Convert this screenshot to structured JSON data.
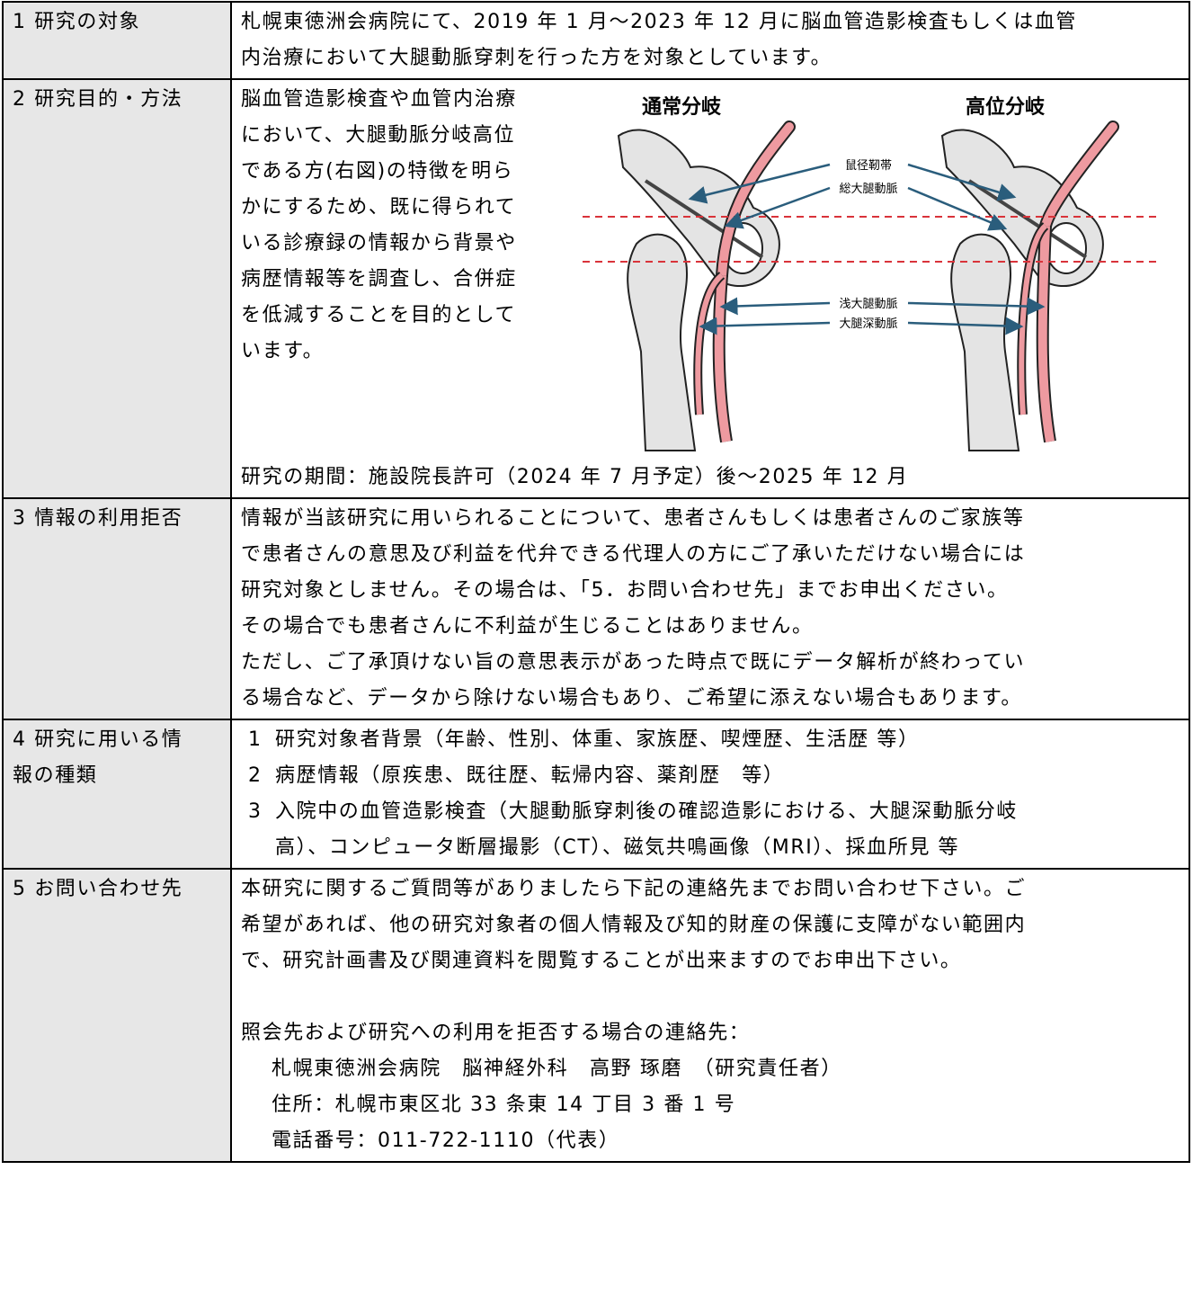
{
  "rows": [
    {
      "label": [
        "1 研究の対象"
      ],
      "lines": [
        "札幌東徳洲会病院にて、2019 年 1 月～2023 年 12 月に脳血管造影検査もしくは血管",
        "内治療において大腿動脈穿刺を行った方を対象としています。"
      ]
    },
    {
      "label": [
        "2 研究目的・方法"
      ],
      "lines": [
        "脳血管造影検査や血管内治療",
        "において、大腿動脈分岐高位",
        "である方(右図)の特徴を明ら",
        "かにするため、既に得られて",
        "いる診療録の情報から背景や",
        "病歴情報等を調査し、合併症",
        "を低減することを目的として",
        "います。"
      ],
      "figure": {
        "titles": [
          "通常分岐",
          "高位分岐"
        ],
        "labels": [
          "鼠径靭帯",
          "総大腿動脈",
          "浅大腿動脈",
          "大腿深動脈"
        ]
      },
      "period": "研究の期間：施設院長許可（2024 年 7 月予定）後～2025 年 12 月"
    },
    {
      "label": [
        "3 情報の利用拒否"
      ],
      "lines": [
        "情報が当該研究に用いられることについて、患者さんもしくは患者さんのご家族等",
        "で患者さんの意思及び利益を代弁できる代理人の方にご了承いただけない場合には",
        "研究対象としません。その場合は、「5．お問い合わせ先」までお申出ください。",
        "その場合でも患者さんに不利益が生じることはありません。",
        "ただし、ご了承頂けない旨の意思表示があった時点で既にデータ解析が終わってい",
        "る場合など、データから除けない場合もあり、ご希望に添えない場合もあります。"
      ]
    },
    {
      "label": [
        "4 研究に用いる情",
        "報の種類"
      ],
      "items": [
        {
          "number": "1",
          "lines": [
            "研究対象者背景（年齢、性別、体重、家族歴、喫煙歴、生活歴 等）"
          ]
        },
        {
          "number": "2",
          "lines": [
            "病歴情報（原疾患、既往歴、転帰内容、薬剤歴　等）"
          ]
        },
        {
          "number": "3",
          "lines": [
            "入院中の血管造影検査（大腿動脈穿刺後の確認造影における、大腿深動脈分岐",
            "高）、コンピュータ断層撮影（CT）、磁気共鳴画像（MRI）、採血所見 等"
          ]
        }
      ]
    },
    {
      "label": [
        "5 お問い合わせ先"
      ],
      "lines": [
        "本研究に関するご質問等がありましたら下記の連絡先までお問い合わせ下さい。ご",
        "希望があれば、他の研究対象者の個人情報及び知的財産の保護に支障がない範囲内",
        "で、研究計画書及び関連資料を閲覧することが出来ますのでお申出下さい。"
      ],
      "contact_heading": "照会先および研究への利用を拒否する場合の連絡先：",
      "contact_lines": [
        "札幌東徳洲会病院　脳神経外科　高野 琢磨　（研究責任者）",
        "住所：札幌市東区北 33 条東 14 丁目 3 番 1 号",
        "電話番号：011-722-1110（代表）"
      ]
    }
  ]
}
